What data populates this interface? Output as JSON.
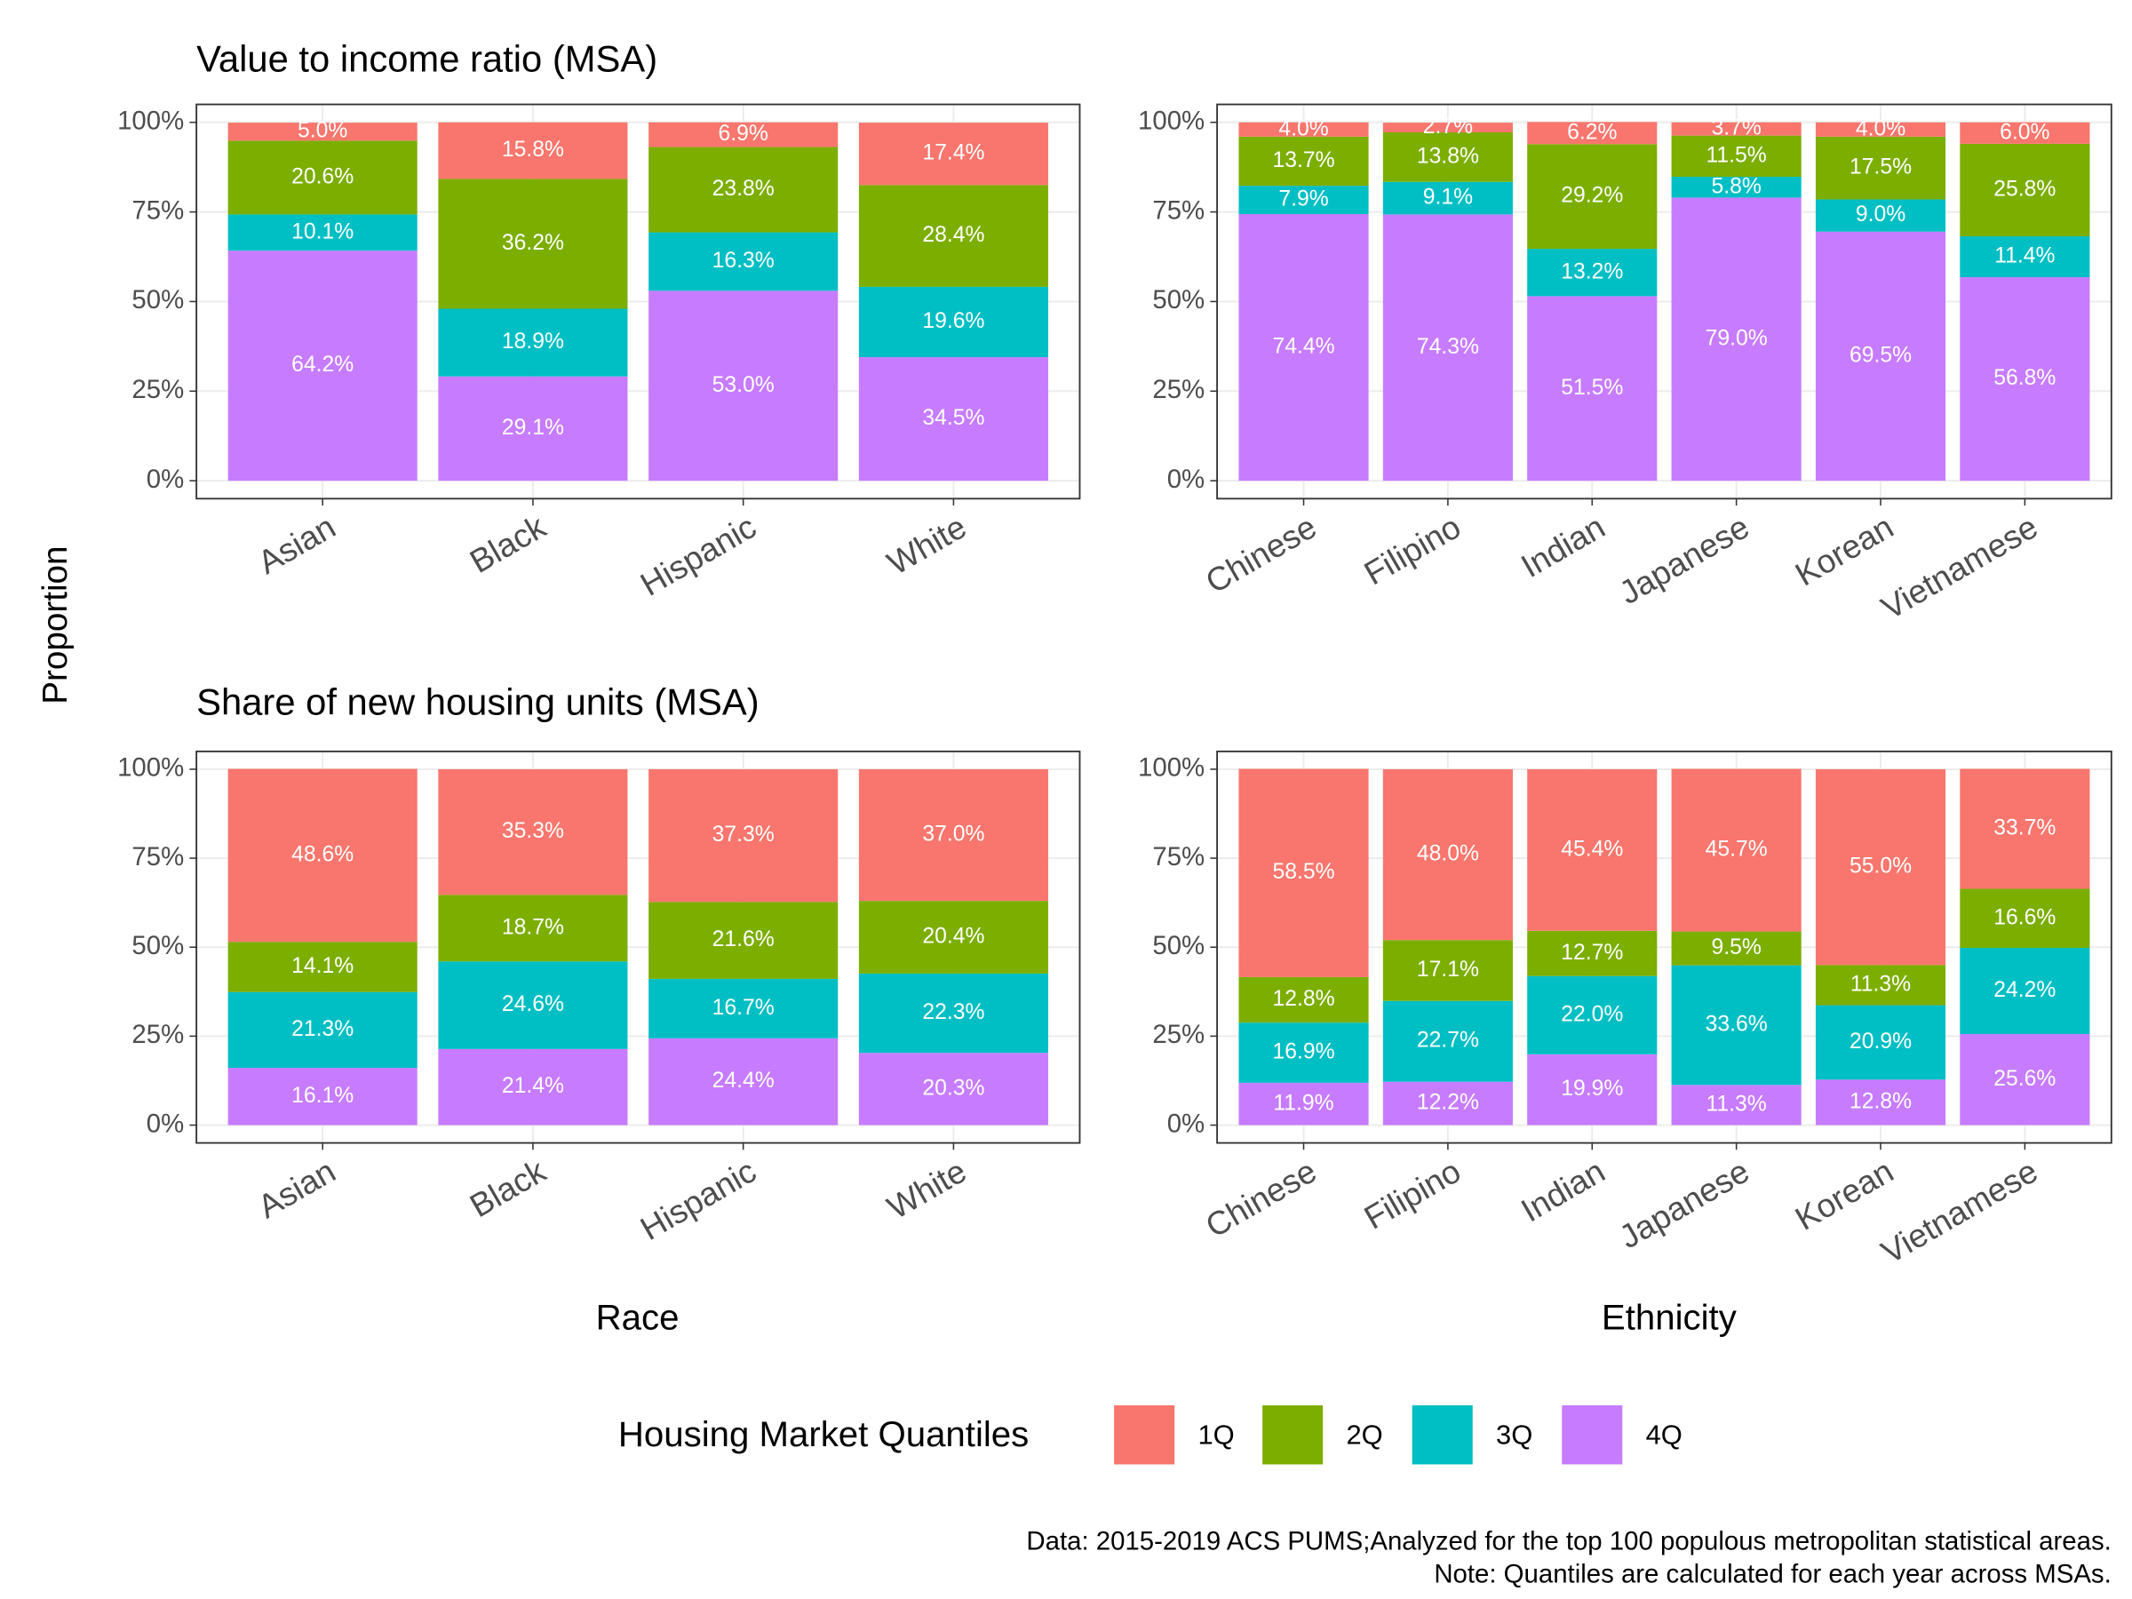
{
  "chart_data": [
    {
      "type": "bar",
      "stacked": true,
      "title": "Value to income ratio (MSA)",
      "categories": [
        "Asian",
        "Black",
        "Hispanic",
        "White"
      ],
      "series": [
        {
          "values": [
            5.0,
            15.8,
            6.9,
            17.4
          ],
          "value_labels": [
            "5.0%",
            "15.8%",
            "6.9%",
            "17.4%"
          ]
        },
        {
          "values": [
            20.6,
            36.2,
            23.8,
            28.4
          ],
          "value_labels": [
            "20.6%",
            "36.2%",
            "23.8%",
            "28.4%"
          ]
        },
        {
          "values": [
            10.1,
            18.9,
            16.3,
            19.6
          ],
          "value_labels": [
            "10.1%",
            "18.9%",
            "16.3%",
            "19.6%"
          ]
        },
        {
          "values": [
            64.2,
            29.1,
            53.0,
            34.5
          ],
          "value_labels": [
            "64.2%",
            "29.1%",
            "53.0%",
            "34.5%"
          ]
        }
      ],
      "ylim": [
        0,
        100
      ],
      "yticks": [
        {
          "value": 0,
          "label": "0%"
        },
        {
          "value": 25,
          "label": "25%"
        },
        {
          "value": 50,
          "label": "50%"
        },
        {
          "value": 75,
          "label": "75%"
        },
        {
          "value": 100,
          "label": "100%"
        }
      ],
      "grid": true
    },
    {
      "type": "bar",
      "stacked": true,
      "categories": [
        "Chinese",
        "Filipino",
        "Indian",
        "Japanese",
        "Korean",
        "Vietnamese"
      ],
      "series": [
        {
          "values": [
            4.0,
            2.7,
            6.2,
            3.7,
            4.0,
            6.0
          ],
          "value_labels": [
            "4.0%",
            "2.7%",
            "6.2%",
            "3.7%",
            "4.0%",
            "6.0%"
          ]
        },
        {
          "values": [
            13.7,
            13.8,
            29.2,
            11.5,
            17.5,
            25.8
          ],
          "value_labels": [
            "13.7%",
            "13.8%",
            "29.2%",
            "11.5%",
            "17.5%",
            "25.8%"
          ]
        },
        {
          "values": [
            7.9,
            9.1,
            13.2,
            5.8,
            9.0,
            11.4
          ],
          "value_labels": [
            "7.9%",
            "9.1%",
            "13.2%",
            "5.8%",
            "9.0%",
            "11.4%"
          ]
        },
        {
          "values": [
            74.4,
            74.3,
            51.5,
            79.0,
            69.5,
            56.8
          ],
          "value_labels": [
            "74.4%",
            "74.3%",
            "51.5%",
            "79.0%",
            "69.5%",
            "56.8%"
          ]
        }
      ],
      "ylim": [
        0,
        100
      ],
      "yticks": [
        {
          "value": 0,
          "label": "0%"
        },
        {
          "value": 25,
          "label": "25%"
        },
        {
          "value": 50,
          "label": "50%"
        },
        {
          "value": 75,
          "label": "75%"
        },
        {
          "value": 100,
          "label": "100%"
        }
      ],
      "grid": true
    },
    {
      "type": "bar",
      "stacked": true,
      "title": "Share of new housing units (MSA)",
      "xlabel": "Race",
      "categories": [
        "Asian",
        "Black",
        "Hispanic",
        "White"
      ],
      "series": [
        {
          "values": [
            48.6,
            35.3,
            37.3,
            37.0
          ],
          "value_labels": [
            "48.6%",
            "35.3%",
            "37.3%",
            "37.0%"
          ]
        },
        {
          "values": [
            14.1,
            18.7,
            21.6,
            20.4
          ],
          "value_labels": [
            "14.1%",
            "18.7%",
            "21.6%",
            "20.4%"
          ]
        },
        {
          "values": [
            21.3,
            24.6,
            16.7,
            22.3
          ],
          "value_labels": [
            "21.3%",
            "24.6%",
            "16.7%",
            "22.3%"
          ]
        },
        {
          "values": [
            16.1,
            21.4,
            24.4,
            20.3
          ],
          "value_labels": [
            "16.1%",
            "21.4%",
            "24.4%",
            "20.3%"
          ]
        }
      ],
      "ylim": [
        0,
        100
      ],
      "yticks": [
        {
          "value": 0,
          "label": "0%"
        },
        {
          "value": 25,
          "label": "25%"
        },
        {
          "value": 50,
          "label": "50%"
        },
        {
          "value": 75,
          "label": "75%"
        },
        {
          "value": 100,
          "label": "100%"
        }
      ],
      "grid": true
    },
    {
      "type": "bar",
      "stacked": true,
      "xlabel": "Ethnicity",
      "categories": [
        "Chinese",
        "Filipino",
        "Indian",
        "Japanese",
        "Korean",
        "Vietnamese"
      ],
      "series": [
        {
          "values": [
            58.5,
            48.0,
            45.4,
            45.7,
            55.0,
            33.7
          ],
          "value_labels": [
            "58.5%",
            "48.0%",
            "45.4%",
            "45.7%",
            "55.0%",
            "33.7%"
          ]
        },
        {
          "values": [
            12.8,
            17.1,
            12.7,
            9.5,
            11.3,
            16.6
          ],
          "value_labels": [
            "12.8%",
            "17.1%",
            "12.7%",
            "9.5%",
            "11.3%",
            "16.6%"
          ]
        },
        {
          "values": [
            16.9,
            22.7,
            22.0,
            33.6,
            20.9,
            24.2
          ],
          "value_labels": [
            "16.9%",
            "22.7%",
            "22.0%",
            "33.6%",
            "20.9%",
            "24.2%"
          ]
        },
        {
          "values": [
            11.9,
            12.2,
            19.9,
            11.3,
            12.8,
            25.6
          ],
          "value_labels": [
            "11.9%",
            "12.2%",
            "19.9%",
            "11.3%",
            "12.8%",
            "25.6%"
          ]
        }
      ],
      "ylim": [
        0,
        100
      ],
      "yticks": [
        {
          "value": 0,
          "label": "0%"
        },
        {
          "value": 25,
          "label": "25%"
        },
        {
          "value": 50,
          "label": "50%"
        },
        {
          "value": 75,
          "label": "75%"
        },
        {
          "value": 100,
          "label": "100%"
        }
      ],
      "grid": true
    }
  ],
  "ylabel": "Proportion",
  "legend": {
    "title": "Housing Market Quantiles",
    "position": "bottom",
    "items": [
      {
        "name": "1Q",
        "color": "#F8766D"
      },
      {
        "name": "2Q",
        "color": "#7CAE00"
      },
      {
        "name": "3Q",
        "color": "#00BFC4"
      },
      {
        "name": "4Q",
        "color": "#C77CFF"
      }
    ]
  },
  "caption": [
    "Data: 2015-2019 ACS PUMS;Analyzed for the top 100 populous metropolitan statistical areas.",
    "Note: Quantiles are calculated for each year across MSAs."
  ]
}
